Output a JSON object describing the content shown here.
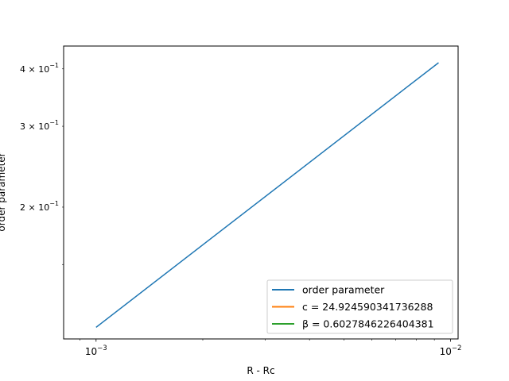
{
  "chart_data": {
    "type": "line",
    "title": "",
    "xlabel": "R - Rc",
    "ylabel": "order parameter",
    "xscale": "log",
    "yscale": "log",
    "xlim": [
      0.00081,
      0.0105
    ],
    "ylim": [
      0.1033,
      0.4485
    ],
    "grid": false,
    "legend_position": "lower-right",
    "x_ticks": [
      {
        "value": 0.001,
        "base": "10",
        "exp": "−3"
      },
      {
        "value": 0.01,
        "base": "10",
        "exp": "−2"
      }
    ],
    "y_ticks": [
      {
        "value": 0.2,
        "coef": "2",
        "base": "10",
        "exp": "−1"
      },
      {
        "value": 0.3,
        "coef": "3",
        "base": "10",
        "exp": "−1"
      },
      {
        "value": 0.4,
        "coef": "4",
        "base": "10",
        "exp": "−1"
      }
    ],
    "series": [
      {
        "name": "order parameter",
        "color": "#1f77b4",
        "x": [
          0.001,
          0.00925
        ],
        "y": [
          0.1095,
          0.4126
        ]
      },
      {
        "name": "c = 24.924590341736288",
        "color": "#ff7f0e",
        "x": [],
        "y": []
      },
      {
        "name": "β = 0.6027846226404381",
        "color": "#2ca02c",
        "x": [],
        "y": []
      }
    ]
  }
}
